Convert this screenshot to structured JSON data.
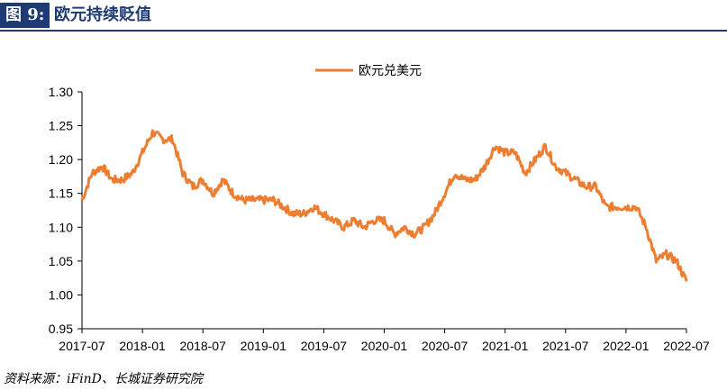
{
  "header": {
    "figure_label": "图 9:",
    "title": "欧元持续贬值"
  },
  "footer": {
    "source": "资料来源：iFinD、长城证券研究院"
  },
  "colors": {
    "accent": "#1f3b73",
    "series": "#ed7d31"
  },
  "chart_data": {
    "type": "line",
    "title": "",
    "xlabel": "",
    "ylabel": "",
    "legend_position": "top-center",
    "grid": false,
    "ylim": [
      0.95,
      1.3
    ],
    "yticks": [
      "0.95",
      "1.00",
      "1.05",
      "1.10",
      "1.15",
      "1.20",
      "1.25",
      "1.30"
    ],
    "xlim": [
      "2017-07",
      "2022-07"
    ],
    "xticks": [
      "2017-07",
      "2018-01",
      "2018-07",
      "2019-01",
      "2019-07",
      "2020-01",
      "2020-07",
      "2021-01",
      "2021-07",
      "2022-01",
      "2022-07"
    ],
    "series": [
      {
        "name": "欧元兑美元",
        "color": "#ed7d31",
        "points": [
          [
            "2017-07",
            1.14
          ],
          [
            "2017-08",
            1.18
          ],
          [
            "2017-09",
            1.19
          ],
          [
            "2017-10",
            1.17
          ],
          [
            "2017-11",
            1.17
          ],
          [
            "2017-12",
            1.18
          ],
          [
            "2018-01",
            1.21
          ],
          [
            "2018-02",
            1.24
          ],
          [
            "2018-03",
            1.23
          ],
          [
            "2018-04",
            1.23
          ],
          [
            "2018-05",
            1.18
          ],
          [
            "2018-06",
            1.16
          ],
          [
            "2018-07",
            1.17
          ],
          [
            "2018-08",
            1.15
          ],
          [
            "2018-09",
            1.17
          ],
          [
            "2018-10",
            1.15
          ],
          [
            "2018-11",
            1.14
          ],
          [
            "2018-12",
            1.14
          ],
          [
            "2019-01",
            1.14
          ],
          [
            "2019-02",
            1.14
          ],
          [
            "2019-03",
            1.13
          ],
          [
            "2019-04",
            1.12
          ],
          [
            "2019-05",
            1.12
          ],
          [
            "2019-06",
            1.13
          ],
          [
            "2019-07",
            1.12
          ],
          [
            "2019-08",
            1.11
          ],
          [
            "2019-09",
            1.1
          ],
          [
            "2019-10",
            1.11
          ],
          [
            "2019-11",
            1.1
          ],
          [
            "2019-12",
            1.11
          ],
          [
            "2020-01",
            1.11
          ],
          [
            "2020-02",
            1.09
          ],
          [
            "2020-03",
            1.1
          ],
          [
            "2020-04",
            1.09
          ],
          [
            "2020-05",
            1.1
          ],
          [
            "2020-06",
            1.12
          ],
          [
            "2020-07",
            1.15
          ],
          [
            "2020-08",
            1.18
          ],
          [
            "2020-09",
            1.17
          ],
          [
            "2020-10",
            1.17
          ],
          [
            "2020-11",
            1.19
          ],
          [
            "2020-12",
            1.22
          ],
          [
            "2021-01",
            1.21
          ],
          [
            "2021-02",
            1.21
          ],
          [
            "2021-03",
            1.18
          ],
          [
            "2021-04",
            1.2
          ],
          [
            "2021-05",
            1.22
          ],
          [
            "2021-06",
            1.19
          ],
          [
            "2021-07",
            1.18
          ],
          [
            "2021-08",
            1.17
          ],
          [
            "2021-09",
            1.16
          ],
          [
            "2021-10",
            1.16
          ],
          [
            "2021-11",
            1.13
          ],
          [
            "2021-12",
            1.13
          ],
          [
            "2022-01",
            1.13
          ],
          [
            "2022-02",
            1.13
          ],
          [
            "2022-03",
            1.1
          ],
          [
            "2022-04",
            1.05
          ],
          [
            "2022-05",
            1.06
          ],
          [
            "2022-06",
            1.05
          ],
          [
            "2022-07",
            1.02
          ]
        ]
      }
    ]
  }
}
